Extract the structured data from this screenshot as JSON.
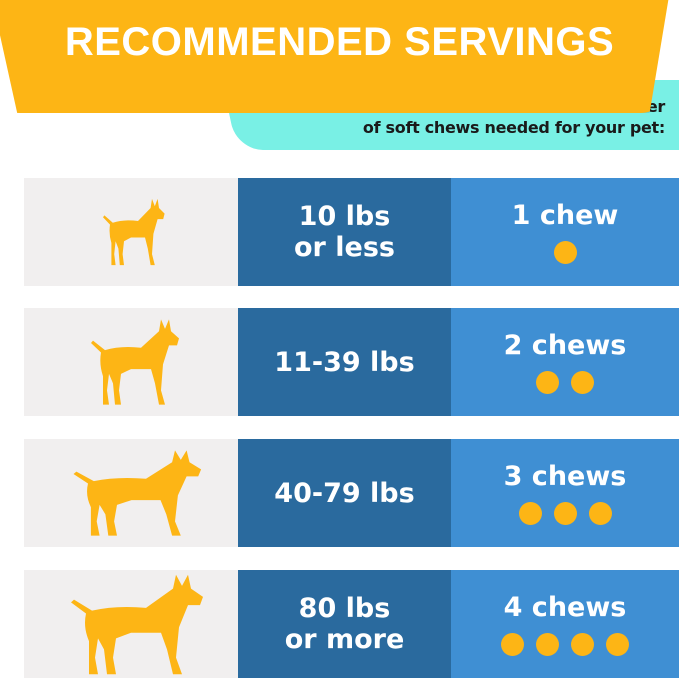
{
  "header": {
    "title": "RECOMMENDED SERVINGS",
    "subtitle_line1": "Use the chart beloww to determine the number",
    "subtitle_line2": "of soft chews needed for your pet:"
  },
  "colors": {
    "orange": "#FDB515",
    "teal": "#79F0E5",
    "dark_blue": "#2A6A9E",
    "light_blue": "#3F8FD3",
    "gray": "#F1EFEF"
  },
  "rows": [
    {
      "icon": "small-dog-icon",
      "weight_line1": "10 lbs",
      "weight_line2": "or less",
      "chews": "1 chew",
      "count": 1
    },
    {
      "icon": "medium-dog-icon",
      "weight_line1": "11-39 lbs",
      "weight_line2": "",
      "chews": "2 chews",
      "count": 2
    },
    {
      "icon": "large-dog-icon",
      "weight_line1": "40-79 lbs",
      "weight_line2": "",
      "chews": "3 chews",
      "count": 3
    },
    {
      "icon": "giant-dog-icon",
      "weight_line1": "80 lbs",
      "weight_line2": "or more",
      "chews": "4 chews",
      "count": 4
    }
  ]
}
